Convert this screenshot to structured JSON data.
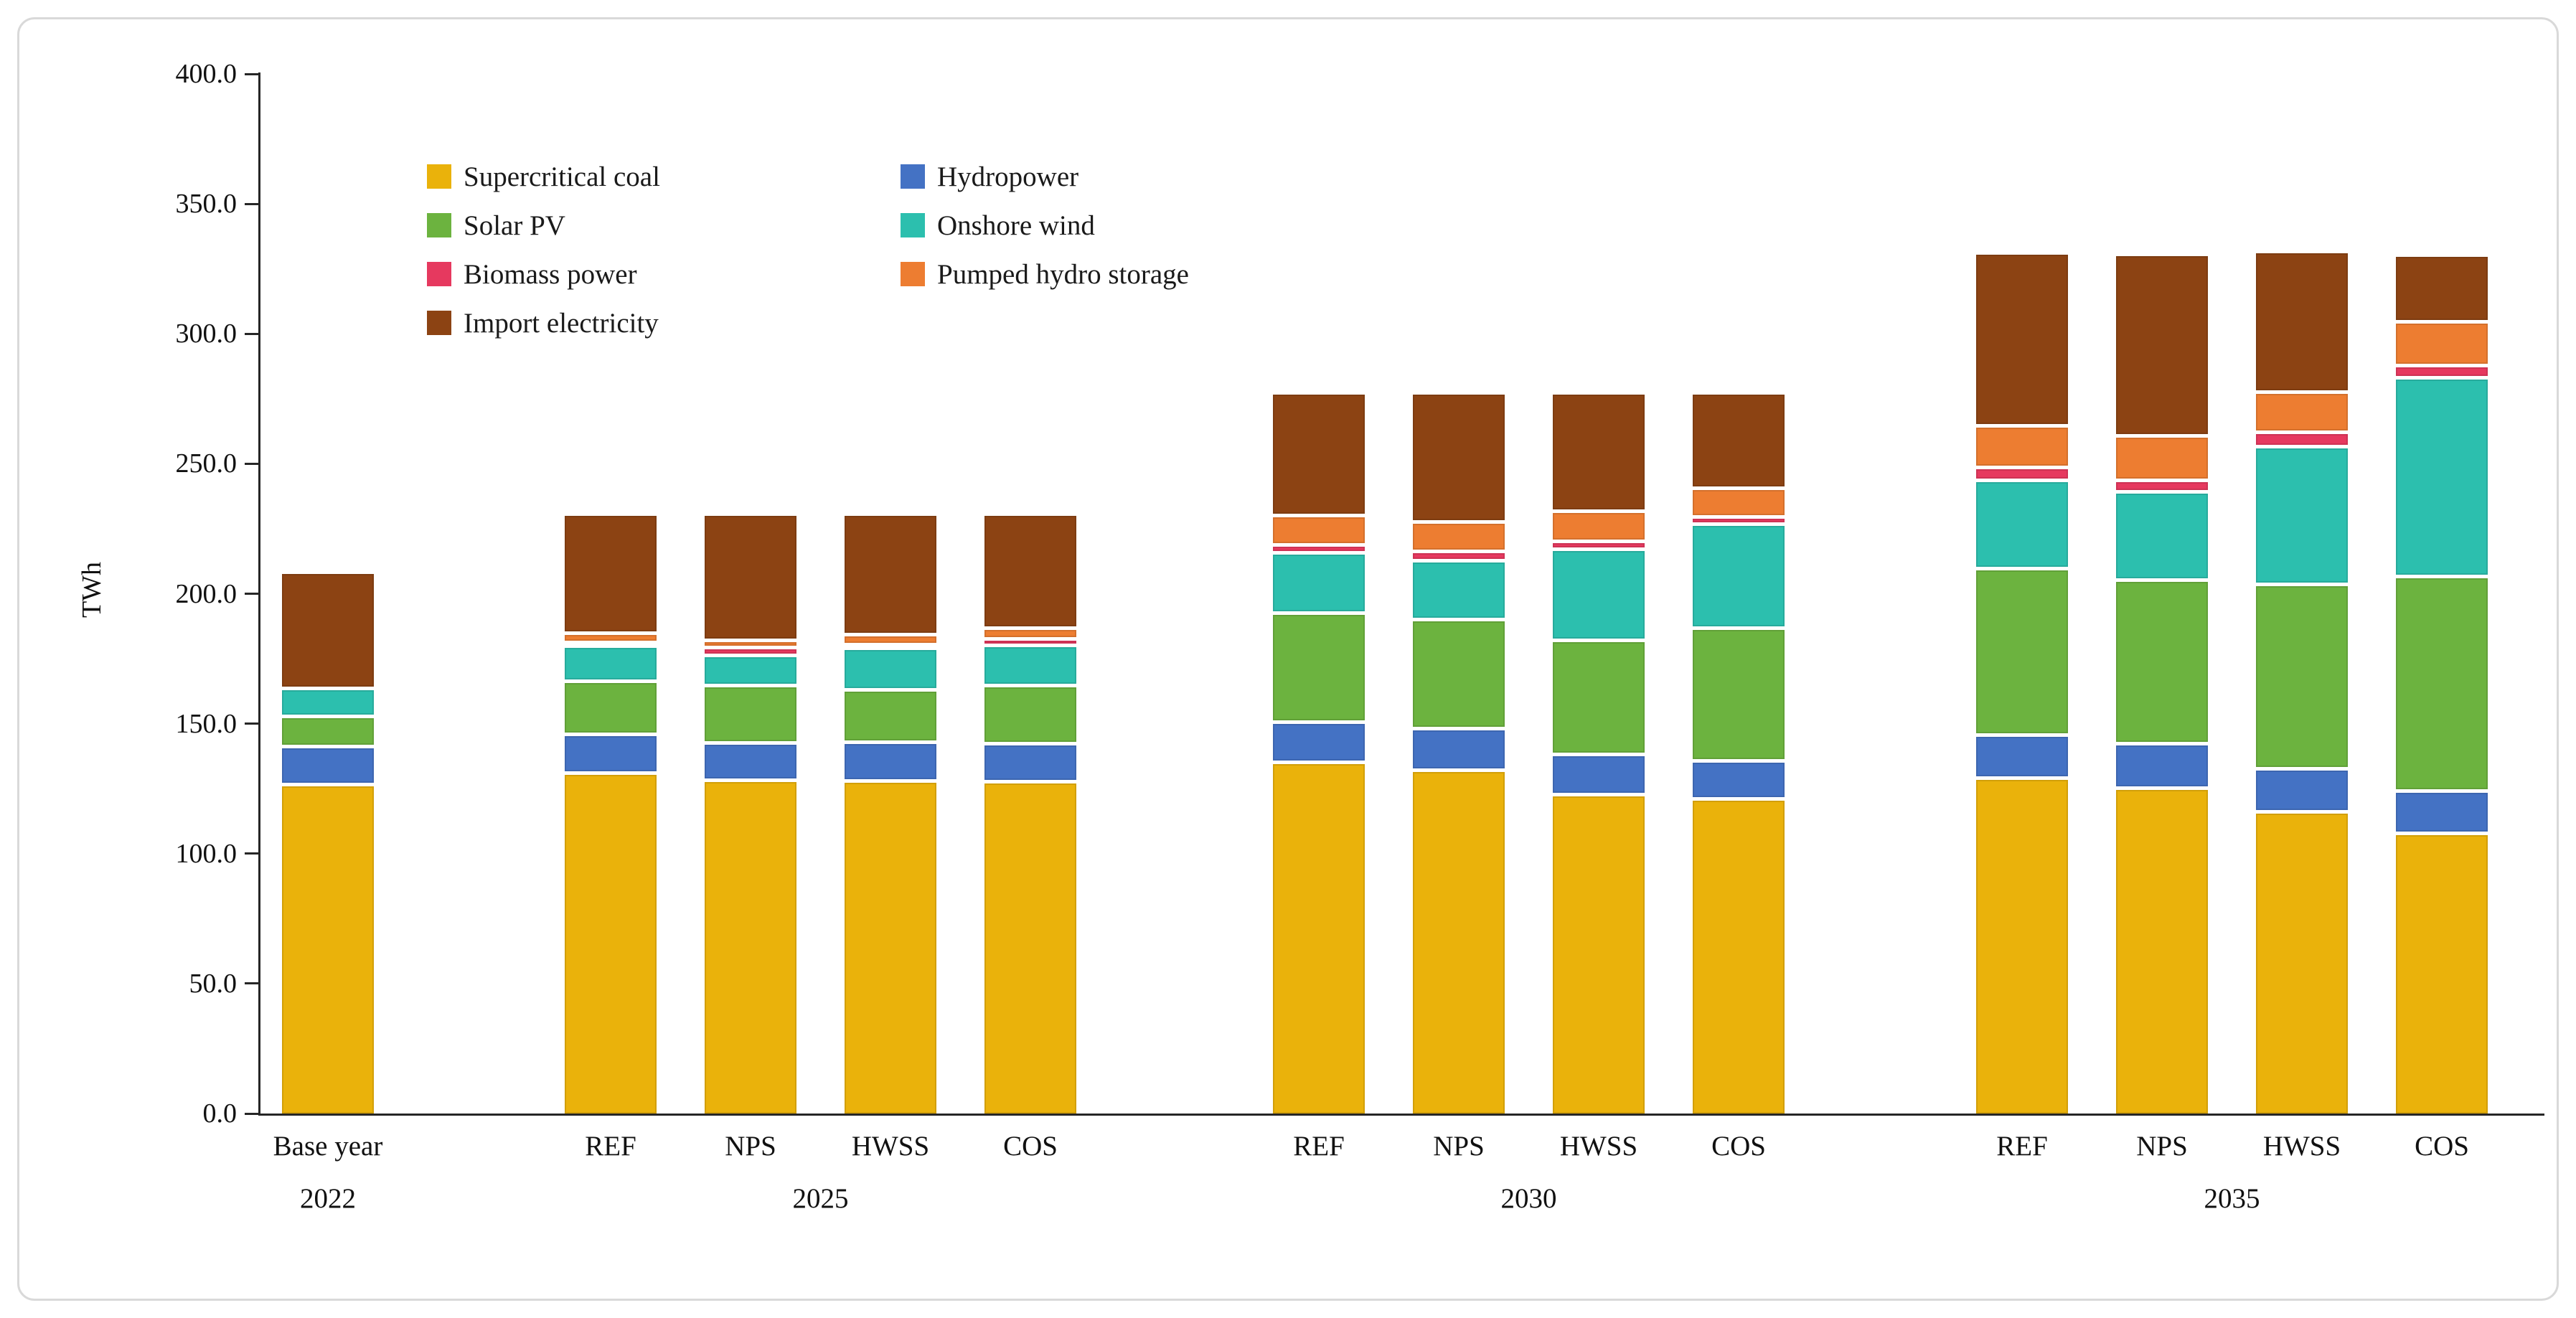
{
  "chart_data": {
    "type": "bar",
    "stacked": true,
    "title": "",
    "ylabel": "TWh",
    "xlabel": "",
    "ylim": [
      0,
      400
    ],
    "y_tick_step": 50,
    "y_ticks": [
      "0.0",
      "50.0",
      "100.0",
      "150.0",
      "200.0",
      "250.0",
      "300.0",
      "350.0",
      "400.0"
    ],
    "grid": "off",
    "legend_position": "upper-left-inside",
    "series_order": [
      "Supercritical coal",
      "Hydropower",
      "Solar PV",
      "Onshore wind",
      "Biomass power",
      "Pumped hydro storage",
      "Import electricity"
    ],
    "colors": {
      "Supercritical coal": "#EAB20B",
      "Hydropower": "#4472C4",
      "Solar PV": "#6CB33F",
      "Onshore wind": "#2CBFAE",
      "Biomass power": "#E6395F",
      "Pumped hydro storage": "#ED7D31",
      "Import electricity": "#8C4313",
      "axis": "#262626"
    },
    "legend_columns": [
      [
        "Supercritical coal",
        "Solar PV",
        "Biomass power",
        "Import electricity"
      ],
      [
        "Hydropower",
        "Onshore wind",
        "Pumped hydro storage"
      ]
    ],
    "groups": [
      {
        "year_label": "2022",
        "bars": [
          {
            "scenario": "Base year",
            "values": {
              "Supercritical coal": 126.0,
              "Hydropower": 14.5,
              "Solar PV": 11.5,
              "Onshore wind": 11.0,
              "Biomass power": 0.0,
              "Pumped hydro storage": 0.0,
              "Import electricity": 44.5
            },
            "total": 207.5
          }
        ]
      },
      {
        "year_label": "2025",
        "bars": [
          {
            "scenario": "REF",
            "values": {
              "Supercritical coal": 130.5,
              "Hydropower": 15.0,
              "Solar PV": 20.5,
              "Onshore wind": 13.5,
              "Biomass power": 1.0,
              "Pumped hydro storage": 3.5,
              "Import electricity": 46.0
            },
            "total": 230.0
          },
          {
            "scenario": "NPS",
            "values": {
              "Supercritical coal": 127.5,
              "Hydropower": 14.5,
              "Solar PV": 22.0,
              "Onshore wind": 11.5,
              "Biomass power": 3.0,
              "Pumped hydro storage": 3.0,
              "Import electricity": 48.5
            },
            "total": 230.0
          },
          {
            "scenario": "HWSS",
            "values": {
              "Supercritical coal": 127.5,
              "Hydropower": 15.0,
              "Solar PV": 20.0,
              "Onshore wind": 16.0,
              "Biomass power": 1.0,
              "Pumped hydro storage": 4.0,
              "Import electricity": 46.5
            },
            "total": 230.0
          },
          {
            "scenario": "COS",
            "values": {
              "Supercritical coal": 127.0,
              "Hydropower": 14.5,
              "Solar PV": 22.5,
              "Onshore wind": 15.5,
              "Biomass power": 2.5,
              "Pumped hydro storage": 4.0,
              "Import electricity": 44.0
            },
            "total": 230.0
          }
        ]
      },
      {
        "year_label": "2030",
        "bars": [
          {
            "scenario": "REF",
            "values": {
              "Supercritical coal": 134.5,
              "Hydropower": 15.5,
              "Solar PV": 42.0,
              "Onshore wind": 23.0,
              "Biomass power": 3.0,
              "Pumped hydro storage": 11.5,
              "Import electricity": 47.0
            },
            "total": 276.5
          },
          {
            "scenario": "NPS",
            "values": {
              "Supercritical coal": 131.5,
              "Hydropower": 16.0,
              "Solar PV": 42.0,
              "Onshore wind": 22.5,
              "Biomass power": 3.5,
              "Pumped hydro storage": 11.5,
              "Import electricity": 49.5
            },
            "total": 276.5
          },
          {
            "scenario": "HWSS",
            "values": {
              "Supercritical coal": 122.0,
              "Hydropower": 15.5,
              "Solar PV": 44.0,
              "Onshore wind": 35.0,
              "Biomass power": 3.0,
              "Pumped hydro storage": 11.5,
              "Import electricity": 45.5
            },
            "total": 276.5
          },
          {
            "scenario": "COS",
            "values": {
              "Supercritical coal": 120.5,
              "Hydropower": 14.5,
              "Solar PV": 51.0,
              "Onshore wind": 40.0,
              "Biomass power": 3.0,
              "Pumped hydro storage": 11.0,
              "Import electricity": 36.5
            },
            "total": 276.5
          }
        ]
      },
      {
        "year_label": "2035",
        "bars": [
          {
            "scenario": "REF",
            "values": {
              "Supercritical coal": 128.5,
              "Hydropower": 16.5,
              "Solar PV": 64.0,
              "Onshore wind": 34.0,
              "Biomass power": 5.0,
              "Pumped hydro storage": 16.0,
              "Import electricity": 66.5
            },
            "total": 330.5
          },
          {
            "scenario": "NPS",
            "values": {
              "Supercritical coal": 124.5,
              "Hydropower": 17.0,
              "Solar PV": 63.0,
              "Onshore wind": 34.0,
              "Biomass power": 4.5,
              "Pumped hydro storage": 17.0,
              "Import electricity": 70.0
            },
            "total": 330.0
          },
          {
            "scenario": "HWSS",
            "values": {
              "Supercritical coal": 115.5,
              "Hydropower": 16.5,
              "Solar PV": 71.0,
              "Onshore wind": 53.0,
              "Biomass power": 5.5,
              "Pumped hydro storage": 15.5,
              "Import electricity": 54.0
            },
            "total": 331.0
          },
          {
            "scenario": "COS",
            "values": {
              "Supercritical coal": 107.0,
              "Hydropower": 16.5,
              "Solar PV": 82.5,
              "Onshore wind": 76.5,
              "Biomass power": 4.5,
              "Pumped hydro storage": 17.0,
              "Import electricity": 25.5
            },
            "total": 329.5
          }
        ]
      }
    ],
    "base_year_label_line1": "Base year",
    "base_year_label_line2": "2022"
  }
}
